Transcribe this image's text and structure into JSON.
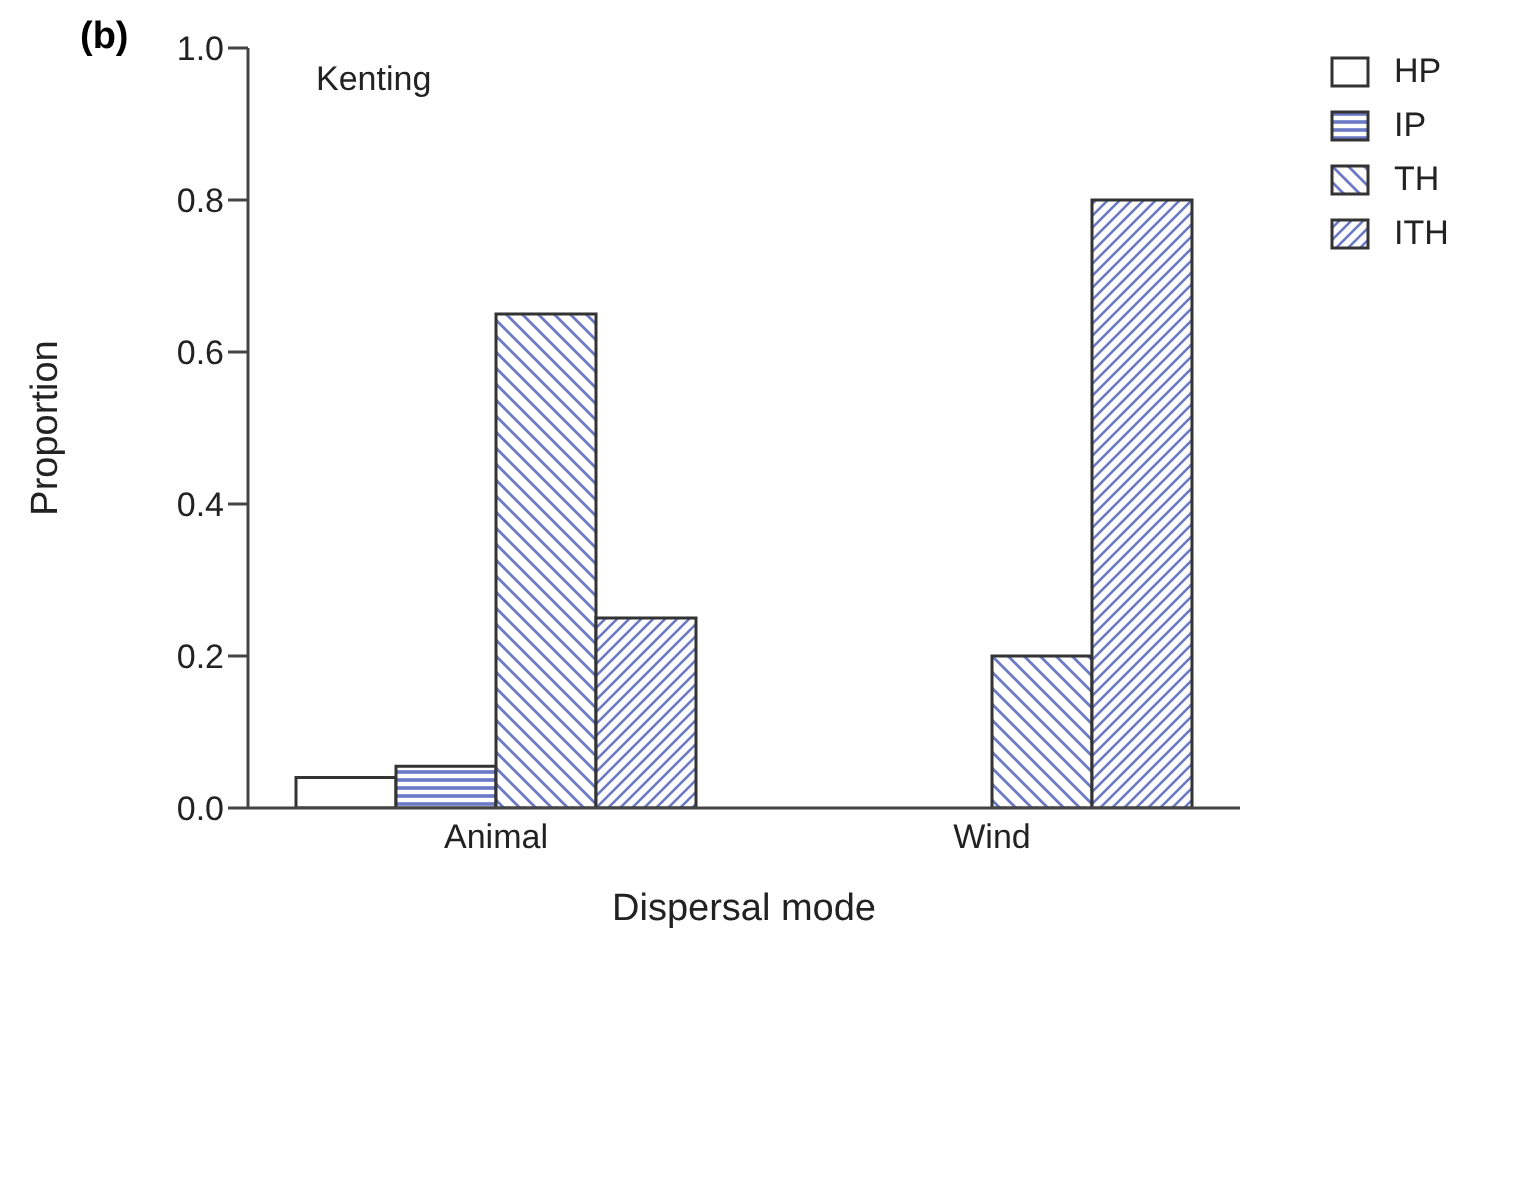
{
  "chart_data": {
    "type": "bar",
    "title": "(b)",
    "annotations": [
      "Kenting"
    ],
    "xlabel": "Dispersal mode",
    "ylabel": "Proportion",
    "categories": [
      "Animal",
      "Wind"
    ],
    "series": [
      {
        "name": "HP",
        "color": "#333333",
        "values": [
          0.04,
          0
        ]
      },
      {
        "name": "IP",
        "color": "#333333",
        "values": [
          0.055,
          0
        ]
      },
      {
        "name": "TH",
        "color": "#333333",
        "values": [
          0.65,
          0.2
        ]
      },
      {
        "name": "ITH",
        "color": "#333333",
        "values": [
          0.25,
          0.8
        ]
      }
    ],
    "ylim": [
      0,
      1
    ],
    "yticks": [
      {
        "value": 0,
        "label": "0.0"
      },
      0.2,
      0.4,
      0.6,
      0.8,
      {
        "value": 1,
        "label": "1.0"
      }
    ],
    "grid": false,
    "legend": "top right"
  }
}
